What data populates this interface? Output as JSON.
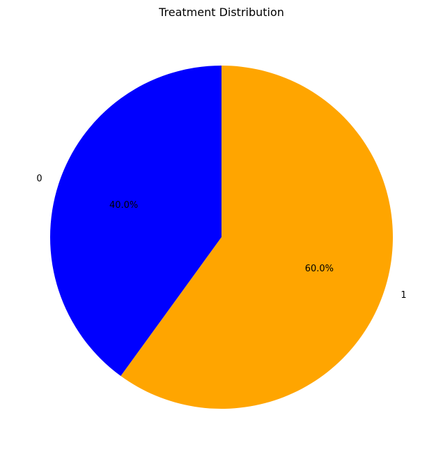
{
  "chart_data": {
    "type": "pie",
    "title": "Treatment Distribution",
    "start_angle_deg": 90,
    "direction": "counterclockwise",
    "slices": [
      {
        "label": "0",
        "value": 40.0,
        "pct_label": "40.0%",
        "color": "#0000ff"
      },
      {
        "label": "1",
        "value": 60.0,
        "pct_label": "60.0%",
        "color": "#ffa500"
      }
    ]
  }
}
